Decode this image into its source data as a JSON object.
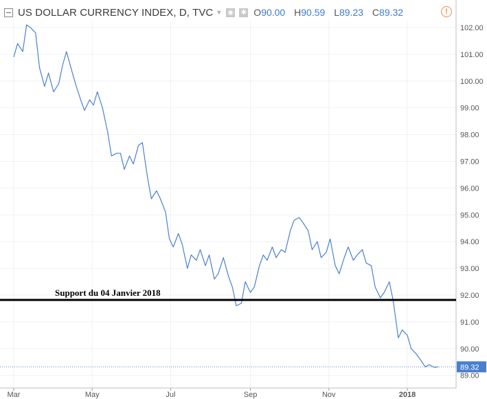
{
  "header": {
    "title": "US DOLLAR CURRENCY INDEX, D, TVC",
    "ohlc": [
      {
        "key": "O",
        "value": "90.00"
      },
      {
        "key": "H",
        "value": "90.59"
      },
      {
        "key": "L",
        "value": "89.23"
      },
      {
        "key": "C",
        "value": "89.32"
      }
    ],
    "warning_glyph": "!"
  },
  "colors": {
    "line": "#4a7fd0",
    "price_label": "#4a7fd0",
    "support_line": "#000000",
    "grid": "#eef1f6",
    "warning": "#f08a3e"
  },
  "chart_data": {
    "type": "line",
    "title": "US DOLLAR CURRENCY INDEX, D, TVC",
    "x_ticks": [
      "Mar",
      "May",
      "Jul",
      "Sep",
      "Nov",
      "2018"
    ],
    "y_ticks": [
      "102.00",
      "101.00",
      "100.00",
      "99.00",
      "98.00",
      "97.00",
      "96.00",
      "95.00",
      "94.00",
      "93.00",
      "92.00",
      "91.00",
      "90.00",
      "89.00"
    ],
    "ylim": [
      88.9,
      102.3
    ],
    "grid": true,
    "last_price": "89.32",
    "annotation": {
      "text": "Support du 04 Janvier 2018",
      "level": 91.82
    },
    "series": [
      {
        "x": [
          "2017-03-01",
          "2017-03-04",
          "2017-03-08",
          "2017-03-11",
          "2017-03-14",
          "2017-03-18",
          "2017-03-21",
          "2017-03-25",
          "2017-03-28",
          "2017-04-01",
          "2017-04-05",
          "2017-04-08",
          "2017-04-11",
          "2017-04-15",
          "2017-04-18",
          "2017-04-22",
          "2017-04-25",
          "2017-04-29",
          "2017-05-02",
          "2017-05-05",
          "2017-05-09",
          "2017-05-13",
          "2017-05-16",
          "2017-05-20",
          "2017-05-23",
          "2017-05-26",
          "2017-05-30",
          "2017-06-02",
          "2017-06-06",
          "2017-06-09",
          "2017-06-13",
          "2017-06-16",
          "2017-06-20",
          "2017-06-23",
          "2017-06-27",
          "2017-06-30",
          "2017-07-03",
          "2017-07-07",
          "2017-07-10",
          "2017-07-14",
          "2017-07-17",
          "2017-07-21",
          "2017-07-24",
          "2017-07-28",
          "2017-07-31",
          "2017-08-04",
          "2017-08-07",
          "2017-08-11",
          "2017-08-15",
          "2017-08-18",
          "2017-08-21",
          "2017-08-25",
          "2017-08-28",
          "2017-09-01",
          "2017-09-04",
          "2017-09-08",
          "2017-09-11",
          "2017-09-14",
          "2017-09-18",
          "2017-09-21",
          "2017-09-25",
          "2017-09-28",
          "2017-10-02",
          "2017-10-05",
          "2017-10-09",
          "2017-10-12",
          "2017-10-16",
          "2017-10-19",
          "2017-10-23",
          "2017-10-26",
          "2017-10-30",
          "2017-11-02",
          "2017-11-06",
          "2017-11-09",
          "2017-11-13",
          "2017-11-16",
          "2017-11-20",
          "2017-11-23",
          "2017-11-27",
          "2017-11-30",
          "2017-12-04",
          "2017-12-07",
          "2017-12-11",
          "2017-12-14",
          "2017-12-18",
          "2017-12-21",
          "2017-12-25",
          "2017-12-28",
          "2018-01-01",
          "2018-01-04",
          "2018-01-08",
          "2018-01-11",
          "2018-01-15",
          "2018-01-18",
          "2018-01-22",
          "2018-01-25"
        ],
        "values": [
          100.9,
          101.4,
          101.1,
          102.1,
          102.0,
          101.8,
          100.5,
          99.8,
          100.3,
          99.6,
          99.9,
          100.6,
          101.1,
          100.4,
          99.9,
          99.3,
          98.9,
          99.3,
          99.1,
          99.6,
          99.0,
          98.1,
          97.2,
          97.3,
          97.3,
          96.7,
          97.2,
          96.9,
          97.6,
          97.7,
          96.4,
          95.6,
          95.9,
          95.6,
          95.1,
          94.1,
          93.8,
          94.3,
          93.9,
          93.0,
          93.5,
          93.3,
          93.7,
          93.1,
          93.5,
          92.6,
          92.8,
          93.4,
          92.7,
          92.3,
          91.6,
          91.7,
          92.5,
          92.1,
          92.3,
          93.1,
          93.5,
          93.3,
          93.8,
          93.4,
          93.7,
          93.6,
          94.4,
          94.8,
          94.9,
          94.7,
          94.4,
          93.7,
          94.0,
          93.4,
          93.6,
          94.1,
          93.1,
          92.8,
          93.4,
          93.8,
          93.3,
          93.5,
          93.7,
          93.2,
          93.1,
          92.3,
          91.9,
          92.1,
          92.5,
          91.8,
          90.4,
          90.7,
          90.5,
          90.0,
          89.8,
          89.6,
          89.32,
          89.4,
          89.3,
          89.32
        ]
      }
    ]
  }
}
